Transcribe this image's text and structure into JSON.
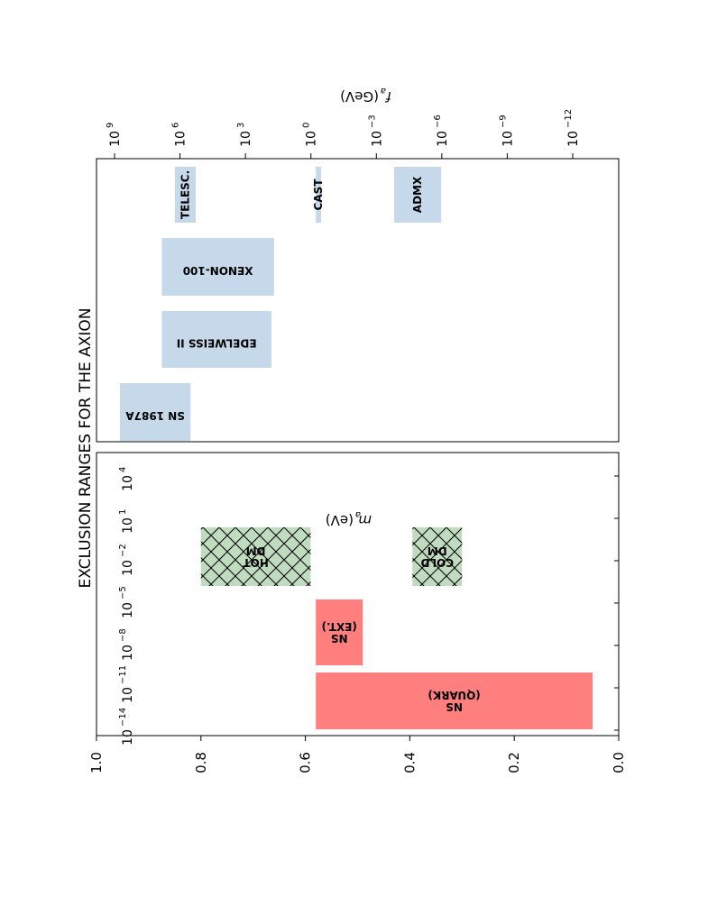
{
  "chart_data": {
    "type": "bar",
    "orientation": "rotated-90",
    "title": "EXCLUSION RANGES FOR THE AXION",
    "x_axis": {
      "label_main": "m",
      "label_sub": "a",
      "label_unit": "(eV)",
      "scale": "log",
      "tick_labels": [
        {
          "base": "10",
          "exp": "4",
          "value": 10000
        },
        {
          "base": "10",
          "exp": "1",
          "value": 10
        },
        {
          "base": "10",
          "exp": "−2",
          "value": 0.01
        },
        {
          "base": "10",
          "exp": "−5",
          "value": 1e-05
        },
        {
          "base": "10",
          "exp": "−8",
          "value": 1e-08
        },
        {
          "base": "10",
          "exp": "−11",
          "value": 1e-11
        },
        {
          "base": "10",
          "exp": "−14",
          "value": 1e-14
        }
      ]
    },
    "top_axis": {
      "label_main": "f",
      "label_sub": "a",
      "label_unit": "(GeV)",
      "scale": "log",
      "tick_labels": [
        {
          "base": "10",
          "exp": "9",
          "value": 1000000000.0
        },
        {
          "base": "10",
          "exp": "6",
          "value": 1000000.0
        },
        {
          "base": "10",
          "exp": "3",
          "value": 1000.0
        },
        {
          "base": "10",
          "exp": "0",
          "value": 1
        },
        {
          "base": "10",
          "exp": "−3",
          "value": 0.001
        },
        {
          "base": "10",
          "exp": "−6",
          "value": 1e-06
        },
        {
          "base": "10",
          "exp": "−9",
          "value": 1e-09
        },
        {
          "base": "10",
          "exp": "−12",
          "value": 1e-12
        }
      ]
    },
    "y_axis": {
      "ylim": [
        0,
        1
      ],
      "tick_labels": [
        "0.0",
        "0.2",
        "0.4",
        "0.6",
        "0.8",
        "1.0"
      ],
      "tick_values": [
        0,
        0.2,
        0.4,
        0.6,
        0.8,
        1.0
      ]
    },
    "colors": {
      "experiment": "#c6d9ea",
      "astro": "#ff7f7f",
      "cosmo": "#bfdcbf",
      "axes": "#000000"
    },
    "bars": [
      {
        "label": "NS\n(QUARK)",
        "group": "astro",
        "fa_range": [
          4e-14,
          0.5
        ],
        "y_range": [
          0.05,
          0.58
        ],
        "hatch": false,
        "flip": true
      },
      {
        "label": "NS\n(EXT.)",
        "group": "astro",
        "fa_range": [
          0.0005,
          0.5
        ],
        "y_range": [
          0.49,
          0.58
        ],
        "hatch": false,
        "flip": true
      },
      {
        "label": "COLD\nDM",
        "group": "cosmo",
        "fa_range": [
          1e-06,
          1e-06
        ],
        "y_range": [
          0.3,
          0.395
        ],
        "hatch": true,
        "flip": true
      },
      {
        "label": "HOT\nDM",
        "group": "cosmo",
        "fa_range": [
          0.5,
          0.1
        ],
        "y_range": [
          0.59,
          0.8
        ],
        "hatch": true,
        "flip": true
      }
    ],
    "experiments": [
      {
        "label": "SN 1987A",
        "mass_range": [
          0.016,
          30000
        ],
        "y_range": [
          0.955,
          0.82
        ],
        "flip": true
      },
      {
        "label": "EDELWEISS II",
        "mass_range": [
          0.005,
          2000
        ],
        "y_range": [
          0.875,
          0.665
        ],
        "flip": true
      },
      {
        "label": "XENON-100",
        "mass_range": [
          0.004,
          5000
        ],
        "y_range": [
          0.875,
          0.66
        ],
        "flip": true
      },
      {
        "label": "TELESC.",
        "mass_range": [
          3,
          15
        ],
        "y_range": [
          0.85,
          0.81
        ],
        "flip": false
      },
      {
        "label": "CAST",
        "mass_range": [
          0.8,
          1.2
        ],
        "y_range": [
          0.58,
          0.57
        ],
        "flip": false
      },
      {
        "label": "ADMX",
        "mass_range": [
          1.5e-06,
          1e-05
        ],
        "y_range": [
          0.43,
          0.34
        ],
        "flip": false
      }
    ]
  }
}
